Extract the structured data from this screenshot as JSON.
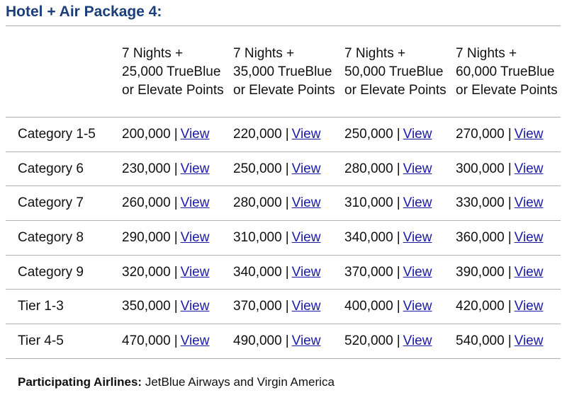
{
  "page": {
    "title": "Hotel + Air Package 4:"
  },
  "table": {
    "columns": [
      "7 Nights + 25,000 TrueBlue or Elevate Points",
      "7 Nights + 35,000 TrueBlue or Elevate Points",
      "7 Nights + 50,000 TrueBlue or Elevate Points",
      "7 Nights + 60,000 TrueBlue or Elevate Points"
    ],
    "link_label": "View",
    "separator": "|",
    "rows": [
      {
        "label": "Category 1-5",
        "values": [
          "200,000",
          "220,000",
          "250,000",
          "270,000"
        ]
      },
      {
        "label": "Category 6",
        "values": [
          "230,000",
          "250,000",
          "280,000",
          "300,000"
        ]
      },
      {
        "label": "Category 7",
        "values": [
          "260,000",
          "280,000",
          "310,000",
          "330,000"
        ]
      },
      {
        "label": "Category 8",
        "values": [
          "290,000",
          "310,000",
          "340,000",
          "360,000"
        ]
      },
      {
        "label": "Category 9",
        "values": [
          "320,000",
          "340,000",
          "370,000",
          "390,000"
        ]
      },
      {
        "label": "Tier 1-3",
        "values": [
          "350,000",
          "370,000",
          "400,000",
          "420,000"
        ]
      },
      {
        "label": "Tier 4-5",
        "values": [
          "470,000",
          "490,000",
          "520,000",
          "540,000"
        ]
      }
    ]
  },
  "footer": {
    "label": "Participating Airlines:",
    "text": "JetBlue Airways and Virgin America"
  },
  "colors": {
    "title": "#1b3f7a",
    "link": "#1a1aa8",
    "rule": "#b0b0b0"
  }
}
